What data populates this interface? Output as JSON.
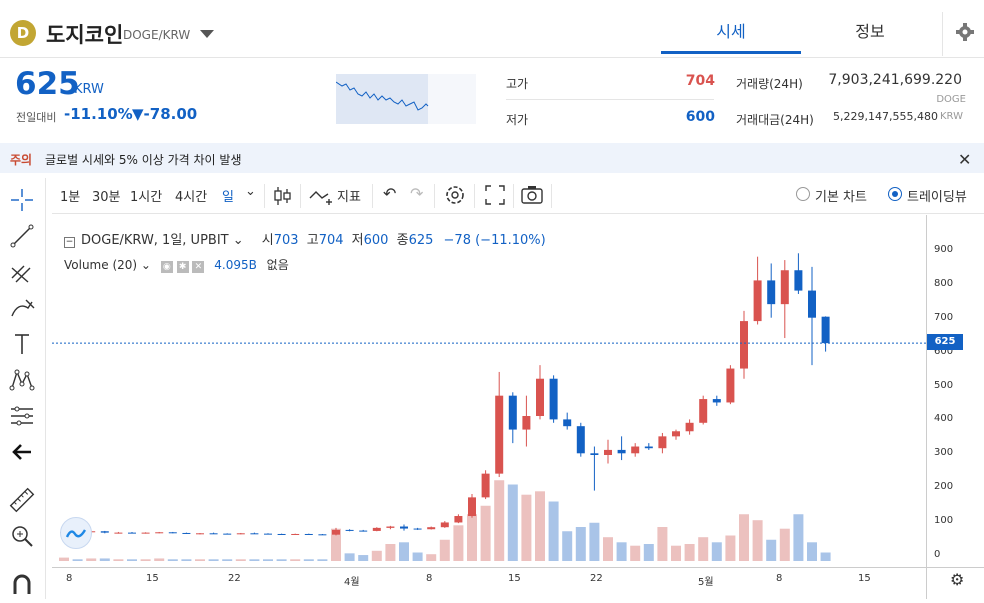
{
  "header": {
    "coin_symbol": "D",
    "coin_name": "도지코인",
    "pair": "DOGE/KRW",
    "tabs": [
      {
        "label": "시세",
        "active": true
      },
      {
        "label": "정보",
        "active": false
      }
    ]
  },
  "ticker": {
    "price": "625",
    "unit": "KRW",
    "change_label": "전일대비",
    "change_rate": "-11.10%",
    "change_amount": "▼-78.00",
    "high_label": "고가",
    "high": "704",
    "low_label": "저가",
    "low": "600",
    "volume_label": "거래량(24H)",
    "volume": "7,903,241,699.220",
    "volume_unit": "DOGE",
    "amount_label": "거래대금(24H)",
    "amount": "5,229,147,555,480",
    "amount_unit": "KRW"
  },
  "notice": {
    "tag": "주의",
    "text": "글로벌 시세와 5% 이상 가격 차이 발생"
  },
  "toolbar": {
    "intervals": [
      "1분",
      "30분",
      "1시간",
      "4시간",
      "일"
    ],
    "indicator_label": "지표",
    "basic_chart": "기본 차트",
    "tradingview": "트레이딩뷰"
  },
  "chart_legend": {
    "symbol": "DOGE/KRW, 1일, UPBIT",
    "open_label": "시",
    "open": "703",
    "high_label": "고",
    "high": "704",
    "low_label": "저",
    "low": "600",
    "close_label": "종",
    "close": "625",
    "change": "−78 (−11.10%)",
    "volume_label": "Volume (20)",
    "volume_value": "4.095B",
    "volume_ma": "없음"
  },
  "colors": {
    "up": "#d9534f",
    "down": "#1261c4",
    "up_vol": "#ecc1bf",
    "down_vol": "#a9c4e8"
  },
  "chart_data": {
    "type": "candlestick",
    "ylim": [
      -30,
      960
    ],
    "yticks": [
      0,
      100,
      200,
      300,
      400,
      500,
      600,
      700,
      800,
      900
    ],
    "xticks": [
      "8",
      "15",
      "22",
      "4월",
      "8",
      "15",
      "22",
      "5월",
      "8",
      "15"
    ],
    "last_price": "625",
    "candles": [
      {
        "o": 67,
        "h": 69,
        "l": 65,
        "c": 68
      },
      {
        "o": 68,
        "h": 70,
        "l": 66,
        "c": 67
      },
      {
        "o": 67,
        "h": 72,
        "l": 65,
        "c": 70
      },
      {
        "o": 70,
        "h": 71,
        "l": 64,
        "c": 66
      },
      {
        "o": 66,
        "h": 68,
        "l": 63,
        "c": 66
      },
      {
        "o": 66,
        "h": 68,
        "l": 64,
        "c": 65
      },
      {
        "o": 65,
        "h": 67,
        "l": 63,
        "c": 66
      },
      {
        "o": 66,
        "h": 68,
        "l": 64,
        "c": 67
      },
      {
        "o": 67,
        "h": 68,
        "l": 64,
        "c": 65
      },
      {
        "o": 65,
        "h": 66,
        "l": 62,
        "c": 63
      },
      {
        "o": 63,
        "h": 65,
        "l": 61,
        "c": 64
      },
      {
        "o": 64,
        "h": 66,
        "l": 62,
        "c": 63
      },
      {
        "o": 63,
        "h": 64,
        "l": 61,
        "c": 62
      },
      {
        "o": 62,
        "h": 65,
        "l": 61,
        "c": 64
      },
      {
        "o": 64,
        "h": 66,
        "l": 62,
        "c": 63
      },
      {
        "o": 63,
        "h": 64,
        "l": 61,
        "c": 62
      },
      {
        "o": 62,
        "h": 63,
        "l": 60,
        "c": 61
      },
      {
        "o": 61,
        "h": 63,
        "l": 60,
        "c": 62
      },
      {
        "o": 62,
        "h": 63,
        "l": 60,
        "c": 61
      },
      {
        "o": 61,
        "h": 62,
        "l": 59,
        "c": 60
      },
      {
        "o": 60,
        "h": 80,
        "l": 58,
        "c": 74
      },
      {
        "o": 74,
        "h": 76,
        "l": 70,
        "c": 72
      },
      {
        "o": 72,
        "h": 74,
        "l": 69,
        "c": 71
      },
      {
        "o": 71,
        "h": 82,
        "l": 70,
        "c": 80
      },
      {
        "o": 80,
        "h": 86,
        "l": 76,
        "c": 84
      },
      {
        "o": 84,
        "h": 90,
        "l": 72,
        "c": 78
      },
      {
        "o": 78,
        "h": 80,
        "l": 74,
        "c": 76
      },
      {
        "o": 76,
        "h": 84,
        "l": 75,
        "c": 82
      },
      {
        "o": 82,
        "h": 100,
        "l": 80,
        "c": 96
      },
      {
        "o": 96,
        "h": 120,
        "l": 94,
        "c": 115
      },
      {
        "o": 115,
        "h": 180,
        "l": 110,
        "c": 170
      },
      {
        "o": 170,
        "h": 250,
        "l": 165,
        "c": 240
      },
      {
        "o": 240,
        "h": 540,
        "l": 230,
        "c": 470
      },
      {
        "o": 470,
        "h": 480,
        "l": 330,
        "c": 370
      },
      {
        "o": 370,
        "h": 470,
        "l": 320,
        "c": 410
      },
      {
        "o": 410,
        "h": 560,
        "l": 400,
        "c": 520
      },
      {
        "o": 520,
        "h": 530,
        "l": 390,
        "c": 400
      },
      {
        "o": 400,
        "h": 420,
        "l": 370,
        "c": 380
      },
      {
        "o": 380,
        "h": 390,
        "l": 290,
        "c": 300
      },
      {
        "o": 300,
        "h": 320,
        "l": 190,
        "c": 295
      },
      {
        "o": 295,
        "h": 340,
        "l": 270,
        "c": 310
      },
      {
        "o": 310,
        "h": 350,
        "l": 280,
        "c": 300
      },
      {
        "o": 300,
        "h": 330,
        "l": 290,
        "c": 320
      },
      {
        "o": 320,
        "h": 330,
        "l": 310,
        "c": 315
      },
      {
        "o": 315,
        "h": 360,
        "l": 300,
        "c": 350
      },
      {
        "o": 350,
        "h": 370,
        "l": 340,
        "c": 365
      },
      {
        "o": 365,
        "h": 400,
        "l": 355,
        "c": 390
      },
      {
        "o": 390,
        "h": 470,
        "l": 385,
        "c": 460
      },
      {
        "o": 460,
        "h": 470,
        "l": 440,
        "c": 450
      },
      {
        "o": 450,
        "h": 560,
        "l": 445,
        "c": 550
      },
      {
        "o": 550,
        "h": 720,
        "l": 520,
        "c": 690
      },
      {
        "o": 690,
        "h": 880,
        "l": 680,
        "c": 810
      },
      {
        "o": 810,
        "h": 860,
        "l": 700,
        "c": 740
      },
      {
        "o": 740,
        "h": 870,
        "l": 640,
        "c": 840
      },
      {
        "o": 840,
        "h": 890,
        "l": 770,
        "c": 780
      },
      {
        "o": 780,
        "h": 850,
        "l": 560,
        "c": 700
      },
      {
        "o": 703,
        "h": 704,
        "l": 600,
        "c": 625
      }
    ],
    "volumes": [
      4,
      2,
      3,
      3,
      2,
      2,
      2,
      3,
      2,
      2,
      2,
      2,
      2,
      2,
      2,
      2,
      2,
      2,
      2,
      2,
      38,
      9,
      7,
      12,
      20,
      22,
      10,
      8,
      25,
      42,
      55,
      65,
      95,
      90,
      78,
      82,
      70,
      35,
      40,
      45,
      28,
      22,
      18,
      20,
      40,
      18,
      20,
      28,
      22,
      30,
      55,
      48,
      25,
      38,
      55,
      22,
      10
    ]
  }
}
